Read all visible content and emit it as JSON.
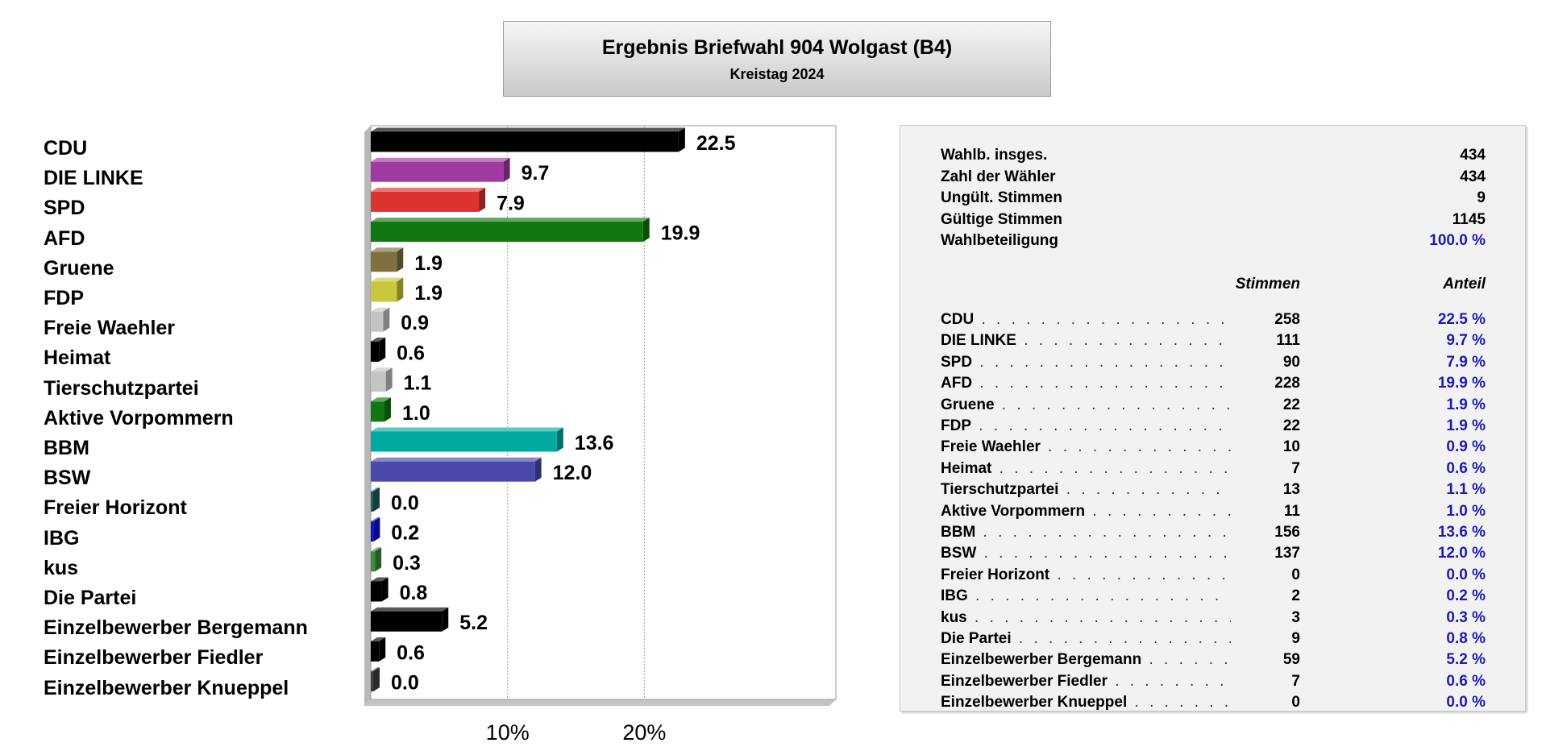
{
  "title": {
    "main": "Ergebnis Briefwahl 904 Wolgast (B4)",
    "sub": "Kreistag 2024"
  },
  "summary": [
    {
      "label": "Wahlb. insges.",
      "value": "434",
      "highlight": false
    },
    {
      "label": "Zahl der Wähler",
      "value": "434",
      "highlight": false
    },
    {
      "label": "Ungült. Stimmen",
      "value": "9",
      "highlight": false
    },
    {
      "label": "Gültige Stimmen",
      "value": "1145",
      "highlight": false
    },
    {
      "label": "Wahlbeteiligung",
      "value": "100.0 %",
      "highlight": true
    }
  ],
  "table_headers": {
    "votes": "Stimmen",
    "share": "Anteil"
  },
  "parties": [
    {
      "name": "CDU",
      "votes": "258",
      "share": "22.5 %"
    },
    {
      "name": "DIE LINKE",
      "votes": "111",
      "share": "9.7 %"
    },
    {
      "name": "SPD",
      "votes": "90",
      "share": "7.9 %"
    },
    {
      "name": "AFD",
      "votes": "228",
      "share": "19.9 %"
    },
    {
      "name": "Gruene",
      "votes": "22",
      "share": "1.9 %"
    },
    {
      "name": "FDP",
      "votes": "22",
      "share": "1.9 %"
    },
    {
      "name": "Freie Waehler",
      "votes": "10",
      "share": "0.9 %"
    },
    {
      "name": "Heimat",
      "votes": "7",
      "share": "0.6 %"
    },
    {
      "name": "Tierschutzpartei",
      "votes": "13",
      "share": "1.1 %"
    },
    {
      "name": "Aktive Vorpommern",
      "votes": "11",
      "share": "1.0 %"
    },
    {
      "name": "BBM",
      "votes": "156",
      "share": "13.6 %"
    },
    {
      "name": "BSW",
      "votes": "137",
      "share": "12.0 %"
    },
    {
      "name": "Freier Horizont",
      "votes": "0",
      "share": "0.0 %"
    },
    {
      "name": "IBG",
      "votes": "2",
      "share": "0.2 %"
    },
    {
      "name": "kus",
      "votes": "3",
      "share": "0.3 %"
    },
    {
      "name": "Die Partei",
      "votes": "9",
      "share": "0.8 %"
    },
    {
      "name": "Einzelbewerber Bergemann",
      "votes": "59",
      "share": "5.2 %"
    },
    {
      "name": "Einzelbewerber Fiedler",
      "votes": "7",
      "share": "0.6 %"
    },
    {
      "name": "Einzelbewerber Knueppel",
      "votes": "0",
      "share": "0.0 %"
    }
  ],
  "chart_data": {
    "type": "bar",
    "orientation": "horizontal",
    "title": "",
    "xlabel": "",
    "ylabel": "",
    "xlim": [
      0,
      34
    ],
    "grid": true,
    "x_ticks": [
      10,
      20
    ],
    "x_tick_labels": [
      "10%",
      "20%"
    ],
    "categories": [
      "CDU",
      "DIE LINKE",
      "SPD",
      "AFD",
      "Gruene",
      "FDP",
      "Freie Waehler",
      "Heimat",
      "Tierschutzpartei",
      "Aktive Vorpommern",
      "BBM",
      "BSW",
      "Freier Horizont",
      "IBG",
      "kus",
      "Die Partei",
      "Einzelbewerber Bergemann",
      "Einzelbewerber Fiedler",
      "Einzelbewerber Knueppel"
    ],
    "values": [
      22.5,
      9.7,
      7.9,
      19.9,
      1.9,
      1.9,
      0.9,
      0.6,
      1.1,
      1.0,
      13.6,
      12.0,
      0.0,
      0.2,
      0.3,
      0.8,
      5.2,
      0.6,
      0.0
    ],
    "value_labels": [
      "22.5",
      "9.7",
      "7.9",
      "19.9",
      "1.9",
      "1.9",
      "0.9",
      "0.6",
      "1.1",
      "1.0",
      "13.6",
      "12.0",
      "0.0",
      "0.2",
      "0.3",
      "0.8",
      "5.2",
      "0.6",
      "0.0"
    ],
    "colors": [
      "#000000",
      "#a03aa0",
      "#dc3232",
      "#117811",
      "#807040",
      "#c8c83c",
      "#c4c4c4",
      "#000000",
      "#c4c4c4",
      "#117811",
      "#00aaa0",
      "#4a4aaa",
      "#206060",
      "#1010d0",
      "#3c8c3c",
      "#000000",
      "#000000",
      "#000000",
      "#404040"
    ]
  }
}
